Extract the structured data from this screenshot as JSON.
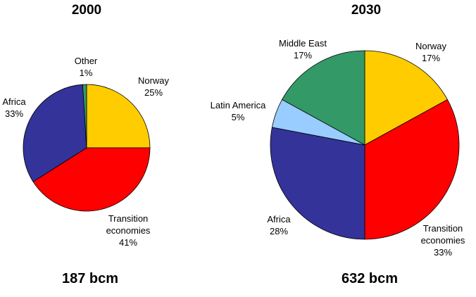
{
  "chart_data": [
    {
      "type": "pie",
      "title": "2000",
      "total": "187 bcm",
      "unit": "%",
      "slices": [
        {
          "label": "Norway",
          "value": 25,
          "color": "#FFCC00",
          "lines": [
            "Norway",
            "25%"
          ]
        },
        {
          "label": "Transition economies",
          "value": 41,
          "color": "#FF0000",
          "lines": [
            "Transition",
            "economies",
            "41%"
          ]
        },
        {
          "label": "Africa",
          "value": 33,
          "color": "#333399",
          "lines": [
            "Africa",
            "33%"
          ]
        },
        {
          "label": "Other",
          "value": 1,
          "color": "#339966",
          "lines": [
            "Other",
            "1%"
          ]
        }
      ]
    },
    {
      "type": "pie",
      "title": "2030",
      "total": "632 bcm",
      "unit": "%",
      "slices": [
        {
          "label": "Norway",
          "value": 17,
          "color": "#FFCC00",
          "lines": [
            "Norway",
            "17%"
          ]
        },
        {
          "label": "Transition economies",
          "value": 33,
          "color": "#FF0000",
          "lines": [
            "Transition",
            "economies",
            "33%"
          ]
        },
        {
          "label": "Africa",
          "value": 28,
          "color": "#333399",
          "lines": [
            "Africa",
            "28%"
          ]
        },
        {
          "label": "Latin America",
          "value": 5,
          "color": "#99CCFF",
          "lines": [
            "Latin America",
            "5%"
          ]
        },
        {
          "label": "Middle East",
          "value": 17,
          "color": "#339966",
          "lines": [
            "Middle East",
            "17%"
          ]
        }
      ]
    }
  ]
}
